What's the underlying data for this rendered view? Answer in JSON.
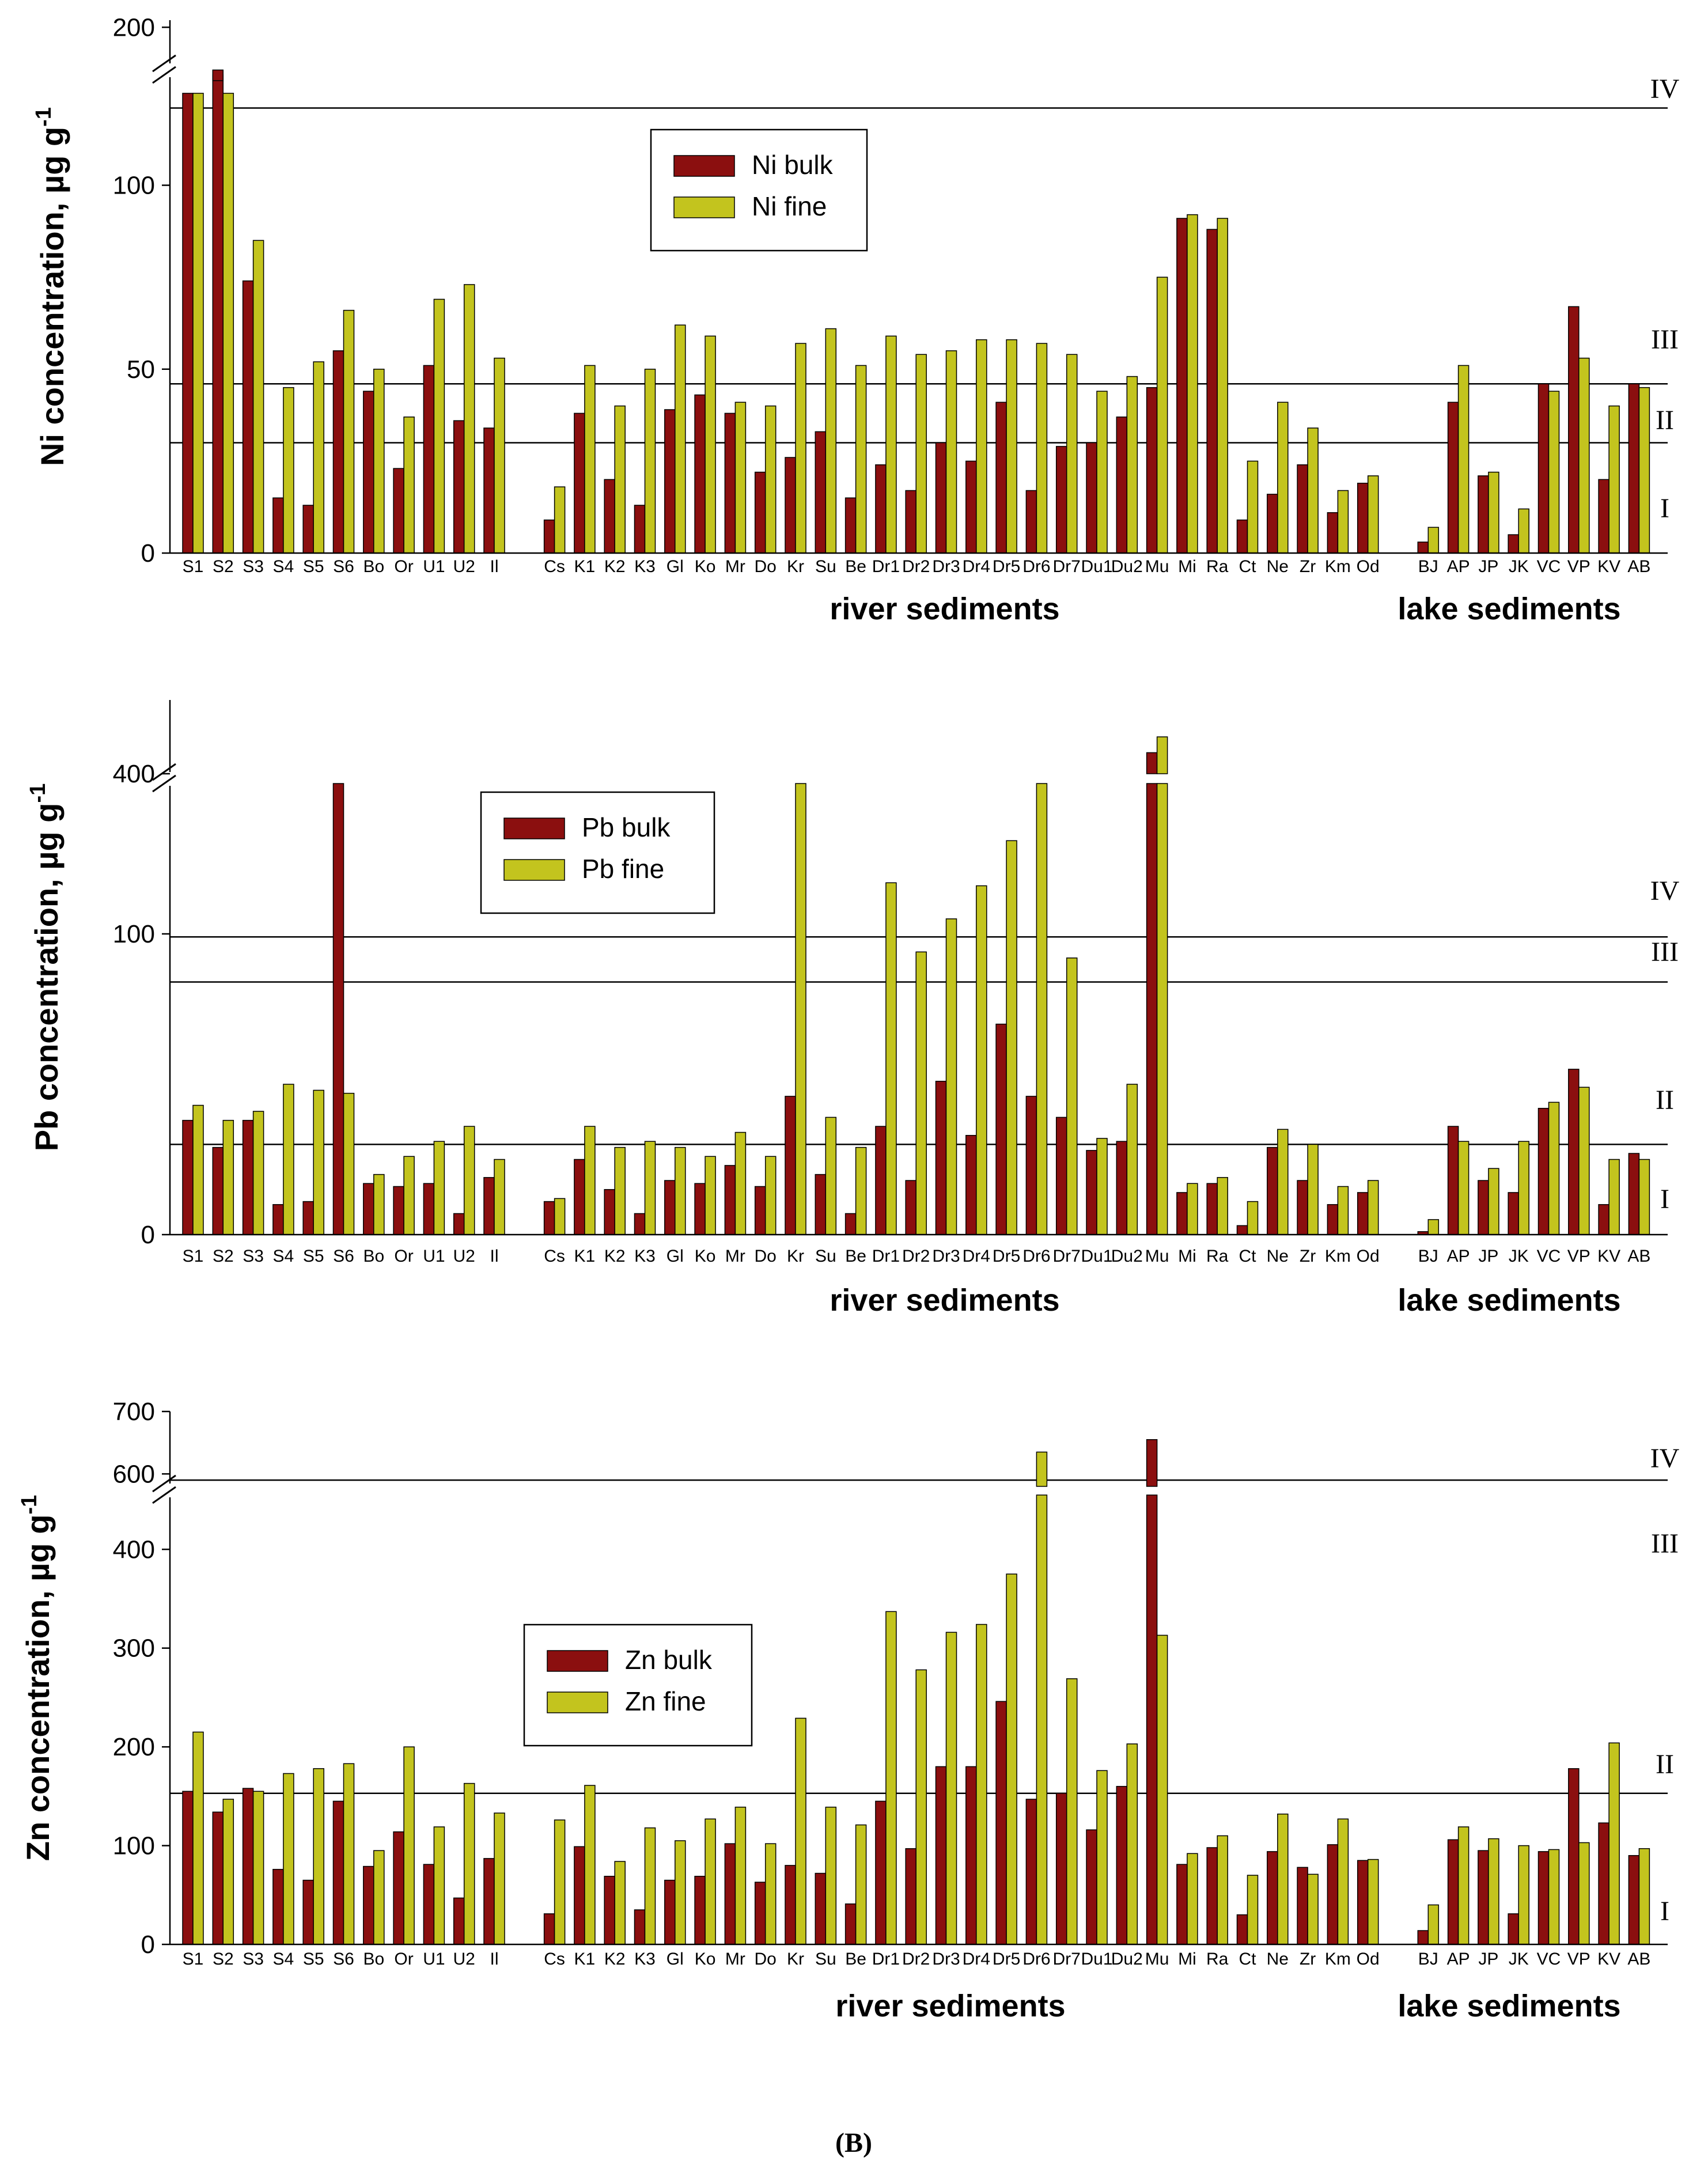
{
  "colors": {
    "bulk": "#8b0f0f",
    "fine": "#c3c41e",
    "axis": "#000000"
  },
  "categories": [
    "S1",
    "S2",
    "S3",
    "S4",
    "S5",
    "S6",
    "Bo",
    "Or",
    "U1",
    "U2",
    "Il",
    "",
    "Cs",
    "K1",
    "K2",
    "K3",
    "Gl",
    "Ko",
    "Mr",
    "Do",
    "Kr",
    "Su",
    "Be",
    "Dr1",
    "Dr2",
    "Dr3",
    "Dr4",
    "Dr5",
    "Dr6",
    "Dr7",
    "Du1",
    "Du2",
    "Mu",
    "Mi",
    "Ra",
    "Ct",
    "Ne",
    "Zr",
    "Km",
    "Od",
    "",
    "BJ",
    "AP",
    "JP",
    "JK",
    "VC",
    "VP",
    "KV",
    "AB"
  ],
  "group_labels": {
    "river": "river sediments",
    "lake": "lake sediments"
  },
  "caption_text": "(B)",
  "chart_data": [
    {
      "type": "bar",
      "metal": "Ni",
      "ylabel": "Ni concentration, µg g",
      "ylabel_sup": "-1",
      "legend": [
        "Ni bulk",
        "Ni fine"
      ],
      "legend_position": "top-center",
      "y_ticks_lower": [
        "0",
        "50",
        "100"
      ],
      "y_ticks_upper": [
        "200"
      ],
      "ylim_lower": [
        0,
        130
      ],
      "axis_break": true,
      "broken_value_shown": 125,
      "class_lines": [
        {
          "label": "IV",
          "value": 121
        },
        {
          "label": "III",
          "value": 46
        },
        {
          "label": "II",
          "value": 30
        },
        {
          "label": "I",
          "value": null
        }
      ],
      "series": [
        {
          "name": "Ni bulk",
          "values": [
            125,
            140,
            74,
            15,
            13,
            55,
            44,
            23,
            51,
            36,
            34,
            null,
            9,
            38,
            20,
            13,
            39,
            43,
            38,
            22,
            26,
            33,
            15,
            24,
            17,
            30,
            25,
            41,
            17,
            29,
            30,
            37,
            45,
            91,
            88,
            9,
            16,
            24,
            11,
            19,
            null,
            3,
            41,
            21,
            5,
            46,
            67,
            20,
            46
          ]
        },
        {
          "name": "Ni fine",
          "values": [
            125,
            125,
            85,
            45,
            52,
            66,
            50,
            37,
            69,
            73,
            53,
            null,
            18,
            51,
            40,
            50,
            62,
            59,
            41,
            40,
            57,
            61,
            51,
            59,
            54,
            55,
            58,
            58,
            57,
            54,
            44,
            48,
            75,
            92,
            91,
            25,
            41,
            34,
            17,
            21,
            null,
            7,
            51,
            22,
            12,
            44,
            53,
            40,
            45
          ]
        }
      ]
    },
    {
      "type": "bar",
      "metal": "Pb",
      "ylabel": "Pb concentration, µg g",
      "ylabel_sup": "-1",
      "legend": [
        "Pb bulk",
        "Pb fine"
      ],
      "legend_position": "top-left",
      "y_ticks_lower": [
        "0",
        "100"
      ],
      "y_ticks_upper": [
        "400"
      ],
      "ylim_lower": [
        0,
        150
      ],
      "axis_break": true,
      "broken_value_shown": 150,
      "class_lines": [
        {
          "label": "IV",
          "value": 99
        },
        {
          "label": "III",
          "value": 84
        },
        {
          "label": "II",
          "value": 30
        },
        {
          "label": "I",
          "value": null
        }
      ],
      "series": [
        {
          "name": "Pb bulk",
          "values": [
            38,
            29,
            38,
            10,
            11,
            150,
            17,
            16,
            17,
            7,
            19,
            null,
            11,
            25,
            15,
            7,
            18,
            17,
            23,
            16,
            46,
            20,
            7,
            36,
            18,
            51,
            33,
            70,
            46,
            39,
            28,
            31,
            420,
            14,
            17,
            3,
            29,
            18,
            10,
            14,
            null,
            1,
            36,
            18,
            14,
            42,
            55,
            10,
            27
          ]
        },
        {
          "name": "Pb fine",
          "values": [
            43,
            38,
            41,
            50,
            48,
            47,
            20,
            26,
            31,
            36,
            25,
            null,
            12,
            36,
            29,
            31,
            29,
            26,
            34,
            26,
            150,
            39,
            29,
            117,
            94,
            105,
            116,
            131,
            150,
            92,
            32,
            50,
            435,
            17,
            19,
            11,
            35,
            30,
            16,
            18,
            null,
            5,
            31,
            22,
            31,
            44,
            49,
            25,
            25
          ]
        }
      ]
    },
    {
      "type": "bar",
      "metal": "Zn",
      "ylabel": "Zn concentration, µg g",
      "ylabel_sup": "-1",
      "legend": [
        "Zn bulk",
        "Zn fine"
      ],
      "legend_position": "middle-left",
      "y_ticks_lower": [
        "0",
        "100",
        "200",
        "300",
        "400"
      ],
      "y_ticks_upper": [
        "600",
        "700"
      ],
      "ylim_lower": [
        0,
        455
      ],
      "axis_break": true,
      "broken_value_shown": 455,
      "class_lines": [
        {
          "label": "IV",
          "value": 590
        },
        {
          "label": "III",
          "value": null
        },
        {
          "label": "II",
          "value": 153
        },
        {
          "label": "I",
          "value": null
        }
      ],
      "series": [
        {
          "name": "Zn bulk",
          "values": [
            155,
            134,
            158,
            76,
            65,
            145,
            79,
            114,
            81,
            47,
            87,
            null,
            31,
            99,
            69,
            35,
            65,
            69,
            102,
            63,
            80,
            72,
            41,
            145,
            97,
            180,
            180,
            246,
            147,
            153,
            116,
            160,
            655,
            81,
            98,
            30,
            94,
            78,
            101,
            85,
            null,
            14,
            106,
            95,
            31,
            94,
            178,
            123,
            90
          ]
        },
        {
          "name": "Zn fine",
          "values": [
            215,
            147,
            155,
            173,
            178,
            183,
            95,
            200,
            119,
            163,
            133,
            null,
            126,
            161,
            84,
            118,
            105,
            127,
            139,
            102,
            229,
            139,
            121,
            337,
            278,
            316,
            324,
            375,
            635,
            269,
            176,
            203,
            313,
            92,
            110,
            70,
            132,
            71,
            127,
            86,
            null,
            40,
            119,
            107,
            100,
            96,
            103,
            204,
            97
          ]
        }
      ]
    }
  ]
}
